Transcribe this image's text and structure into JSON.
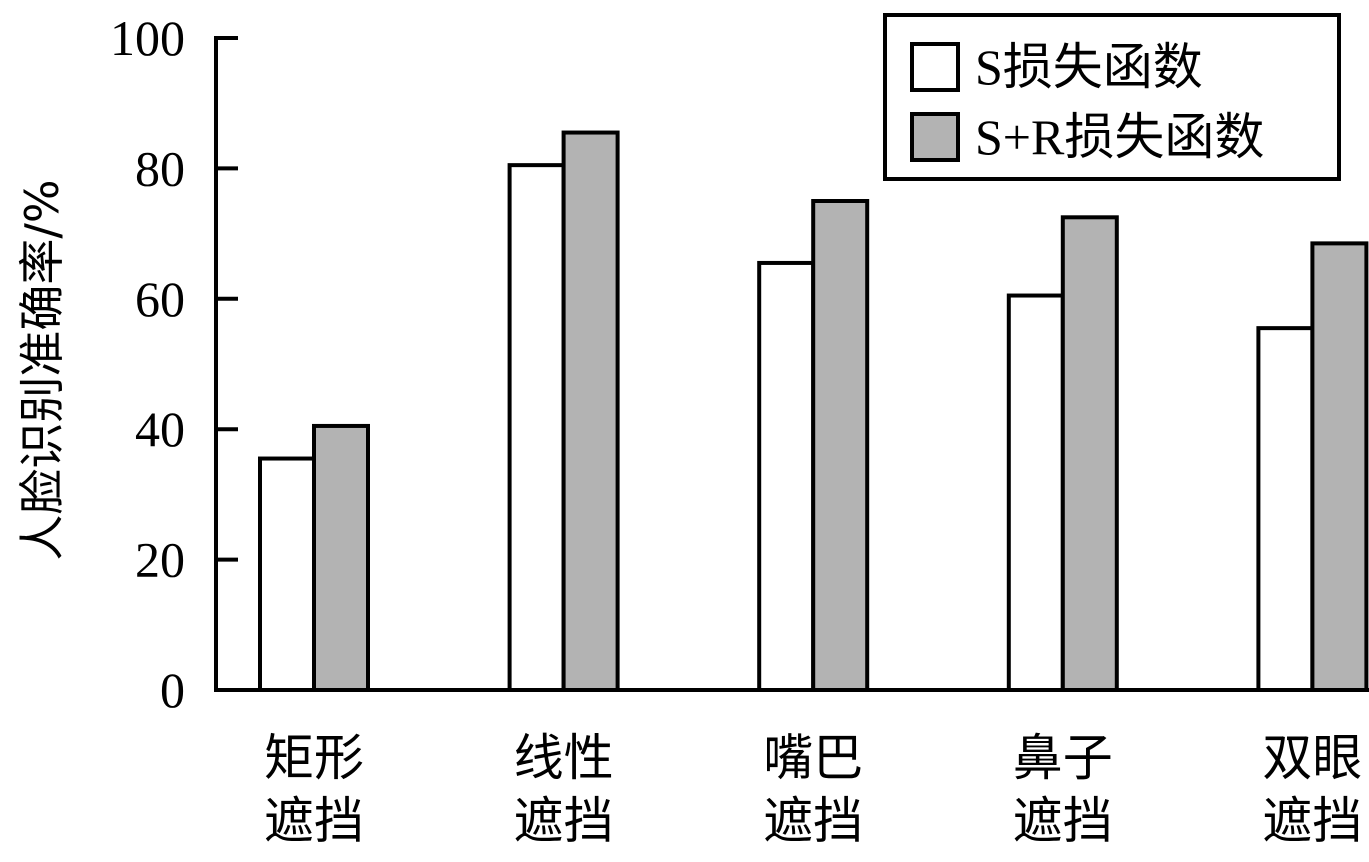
{
  "chart_data": {
    "type": "bar",
    "categories": [
      [
        "矩形",
        "遮挡"
      ],
      [
        "线性",
        "遮挡"
      ],
      [
        "嘴巴",
        "遮挡"
      ],
      [
        "鼻子",
        "遮挡"
      ],
      [
        "双眼",
        "遮挡"
      ]
    ],
    "series": [
      {
        "name": "S损失函数",
        "values": [
          35.5,
          80.5,
          65.5,
          60.5,
          55.5
        ],
        "color": "#ffffff"
      },
      {
        "name": "S+R损失函数",
        "values": [
          40.5,
          85.5,
          75.0,
          72.5,
          68.5
        ],
        "color": "#b3b3b3"
      }
    ],
    "ylabel": "人脸识别准确率/%",
    "xlabel": "",
    "ylim": [
      0,
      100
    ],
    "yticks": [
      "0",
      "20",
      "40",
      "60",
      "80",
      "100"
    ],
    "grid": false,
    "legend_position": "top-right"
  }
}
